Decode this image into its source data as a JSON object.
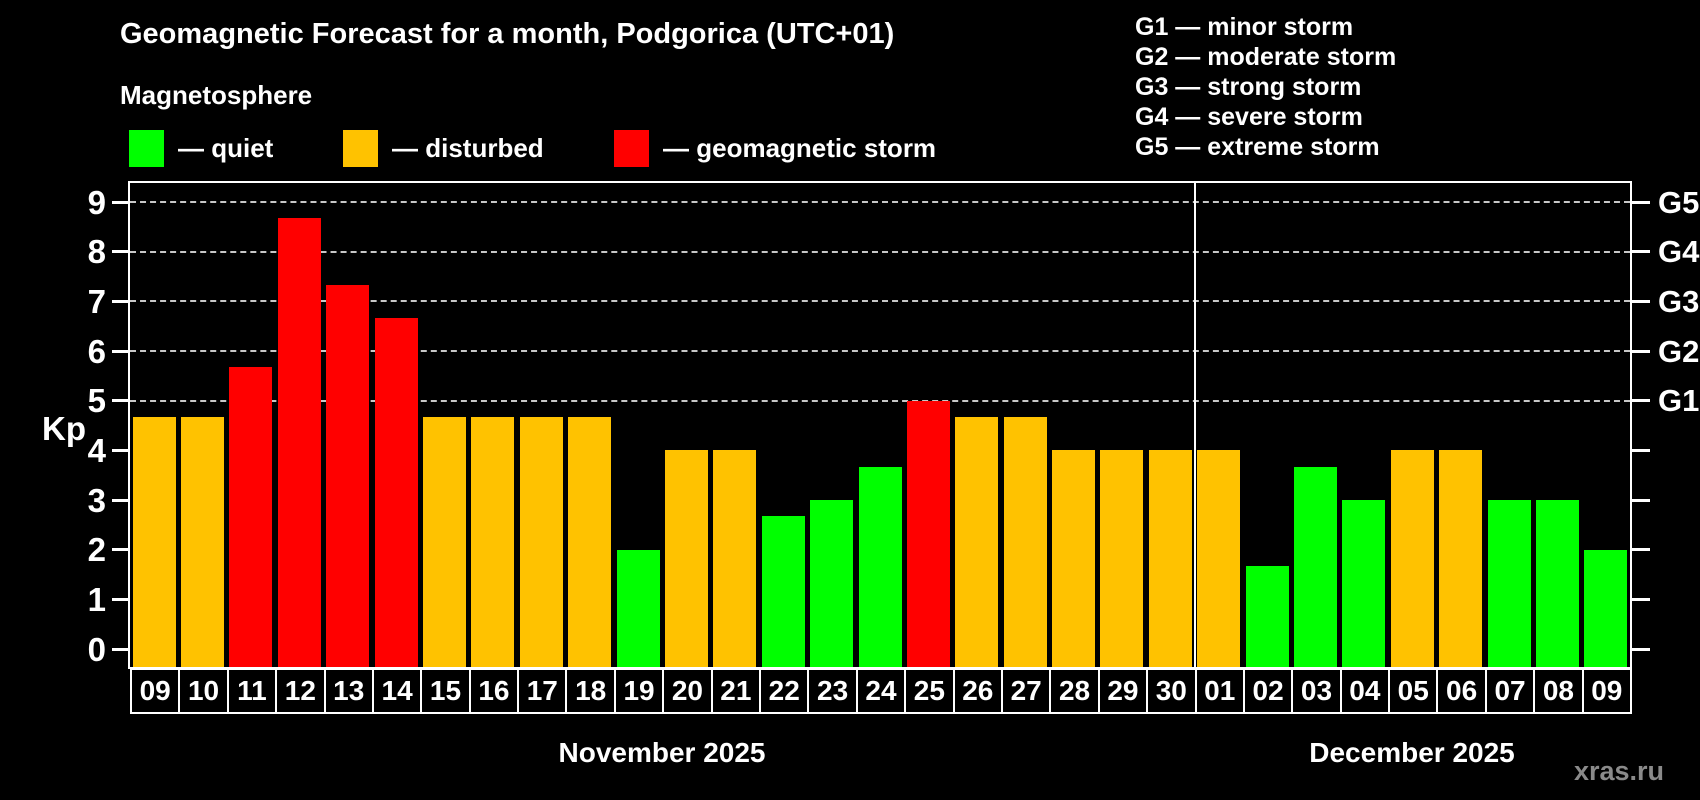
{
  "header": {
    "title": "Geomagnetic Forecast for a month, Podgorica (UTC+01)",
    "subtitle": "Magnetosphere"
  },
  "legend": [
    {
      "key": "quiet",
      "label": "— quiet"
    },
    {
      "key": "disturbed",
      "label": "— disturbed"
    },
    {
      "key": "storm",
      "label": "— geomagnetic storm"
    }
  ],
  "storm_legend": [
    "G1 — minor storm",
    "G2 — moderate storm",
    "G3 — strong storm",
    "G4 — severe storm",
    "G5 — extreme storm"
  ],
  "watermark": "xras.ru",
  "colors": {
    "quiet": "#00ff00",
    "disturbed": "#ffc200",
    "storm": "#ff0000",
    "background": "#000000",
    "grid": "#c8c8c8",
    "axis": "#ffffff",
    "watermark": "#8a8a8a"
  },
  "chart_data": {
    "type": "bar",
    "title": "Geomagnetic Forecast for a month, Podgorica (UTC+01)",
    "ylabel": "Kp",
    "ylim": [
      0,
      9.4
    ],
    "yticks": [
      0,
      1,
      2,
      3,
      4,
      5,
      6,
      7,
      8,
      9
    ],
    "gridlines": [
      5,
      6,
      7,
      8,
      9
    ],
    "grid_on": true,
    "legend_position": "top",
    "right_axis": [
      {
        "kp": 5,
        "label": "G1"
      },
      {
        "kp": 6,
        "label": "G2"
      },
      {
        "kp": 7,
        "label": "G3"
      },
      {
        "kp": 8,
        "label": "G4"
      },
      {
        "kp": 9,
        "label": "G5"
      }
    ],
    "months": [
      {
        "label": "November 2025",
        "start": 0,
        "count": 22
      },
      {
        "label": "December 2025",
        "start": 22,
        "count": 9
      }
    ],
    "bars": [
      {
        "day": "09",
        "kp": 4.67,
        "status": "disturbed"
      },
      {
        "day": "10",
        "kp": 4.67,
        "status": "disturbed"
      },
      {
        "day": "11",
        "kp": 5.67,
        "status": "storm"
      },
      {
        "day": "12",
        "kp": 8.67,
        "status": "storm"
      },
      {
        "day": "13",
        "kp": 7.33,
        "status": "storm"
      },
      {
        "day": "14",
        "kp": 6.67,
        "status": "storm"
      },
      {
        "day": "15",
        "kp": 4.67,
        "status": "disturbed"
      },
      {
        "day": "16",
        "kp": 4.67,
        "status": "disturbed"
      },
      {
        "day": "17",
        "kp": 4.67,
        "status": "disturbed"
      },
      {
        "day": "18",
        "kp": 4.67,
        "status": "disturbed"
      },
      {
        "day": "19",
        "kp": 2.0,
        "status": "quiet"
      },
      {
        "day": "20",
        "kp": 4.0,
        "status": "disturbed"
      },
      {
        "day": "21",
        "kp": 4.0,
        "status": "disturbed"
      },
      {
        "day": "22",
        "kp": 2.67,
        "status": "quiet"
      },
      {
        "day": "23",
        "kp": 3.0,
        "status": "quiet"
      },
      {
        "day": "24",
        "kp": 3.67,
        "status": "quiet"
      },
      {
        "day": "25",
        "kp": 5.0,
        "status": "storm"
      },
      {
        "day": "26",
        "kp": 4.67,
        "status": "disturbed"
      },
      {
        "day": "27",
        "kp": 4.67,
        "status": "disturbed"
      },
      {
        "day": "28",
        "kp": 4.0,
        "status": "disturbed"
      },
      {
        "day": "29",
        "kp": 4.0,
        "status": "disturbed"
      },
      {
        "day": "30",
        "kp": 4.0,
        "status": "disturbed"
      },
      {
        "day": "01",
        "kp": 4.0,
        "status": "disturbed"
      },
      {
        "day": "02",
        "kp": 1.67,
        "status": "quiet"
      },
      {
        "day": "03",
        "kp": 3.67,
        "status": "quiet"
      },
      {
        "day": "04",
        "kp": 3.0,
        "status": "quiet"
      },
      {
        "day": "05",
        "kp": 4.0,
        "status": "disturbed"
      },
      {
        "day": "06",
        "kp": 4.0,
        "status": "disturbed"
      },
      {
        "day": "07",
        "kp": 3.0,
        "status": "quiet"
      },
      {
        "day": "08",
        "kp": 3.0,
        "status": "quiet"
      },
      {
        "day": "09",
        "kp": 2.0,
        "status": "quiet"
      }
    ]
  }
}
